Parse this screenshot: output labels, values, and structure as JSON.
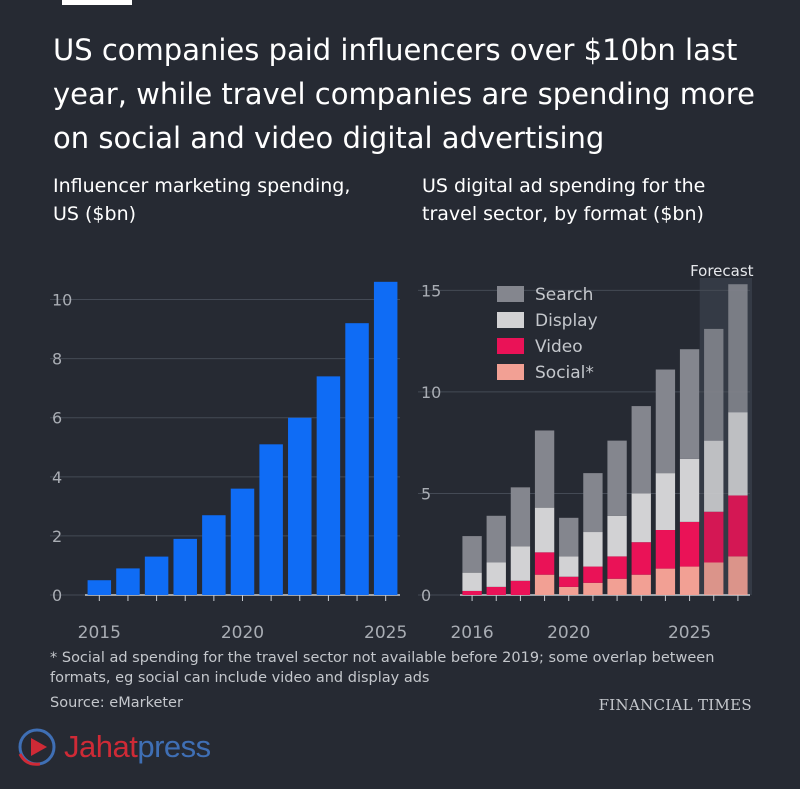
{
  "headline": "US companies paid influencers over $10bn last year, while travel companies are spending more on social and video digital advertising",
  "footnote": "* Social ad spending for the travel sector not available before 2019; some overlap between formats, eg social can include video and display ads",
  "source": "Source: eMarketer",
  "brand": "FINANCIAL TIMES",
  "watermark": {
    "part1": "Jahat",
    "part2": "press",
    "icon": "play-logo-icon"
  },
  "colors": {
    "background": "#262a33",
    "influencer_bar": "#0f6cf5",
    "search": "#84868e",
    "display": "#d2d2d4",
    "video": "#ea1257",
    "social": "#f2a094",
    "forecast_band": "#343a45"
  },
  "chart_data": [
    {
      "type": "bar",
      "title": "Influencer marketing spending, US ($bn)",
      "x": [
        2015,
        2016,
        2017,
        2018,
        2019,
        2020,
        2021,
        2022,
        2023,
        2024,
        2025
      ],
      "values": [
        0.5,
        0.9,
        1.3,
        1.9,
        2.7,
        3.6,
        5.1,
        6.0,
        7.4,
        9.2,
        10.6
      ],
      "x_tick_labels": [
        "2015",
        "2020",
        "2025"
      ],
      "y_ticks": [
        0,
        2,
        4,
        6,
        8,
        10
      ],
      "ylim": [
        0,
        11
      ],
      "grid": true,
      "legend": "none"
    },
    {
      "type": "bar",
      "stacked": true,
      "title": "US digital ad spending for the travel sector, by format ($bn)",
      "x": [
        2016,
        2017,
        2018,
        2019,
        2020,
        2021,
        2022,
        2023,
        2024,
        2025,
        2026,
        2027
      ],
      "x_tick_labels": [
        "2016",
        "2020",
        "2025"
      ],
      "y_ticks": [
        0,
        5,
        10,
        15
      ],
      "ylim": [
        0,
        16
      ],
      "grid": true,
      "legend": "top-left",
      "forecast_label": "Forecast",
      "forecast_from": 2026,
      "footnote_marker": "*",
      "series": [
        {
          "name": "Social*",
          "values": [
            0,
            0,
            0,
            1.0,
            0.4,
            0.6,
            0.8,
            1.0,
            1.3,
            1.4,
            1.6,
            1.9
          ]
        },
        {
          "name": "Video",
          "values": [
            0.2,
            0.4,
            0.7,
            1.1,
            0.5,
            0.8,
            1.1,
            1.6,
            1.9,
            2.2,
            2.5,
            3.0
          ]
        },
        {
          "name": "Display",
          "values": [
            0.9,
            1.2,
            1.7,
            2.2,
            1.0,
            1.7,
            2.0,
            2.4,
            2.8,
            3.1,
            3.5,
            4.1
          ]
        },
        {
          "name": "Search",
          "values": [
            1.8,
            2.3,
            2.9,
            3.8,
            1.9,
            2.9,
            3.7,
            4.3,
            5.1,
            5.4,
            5.5,
            6.3
          ]
        }
      ],
      "legend_order": [
        "Search",
        "Display",
        "Video",
        "Social*"
      ]
    }
  ]
}
